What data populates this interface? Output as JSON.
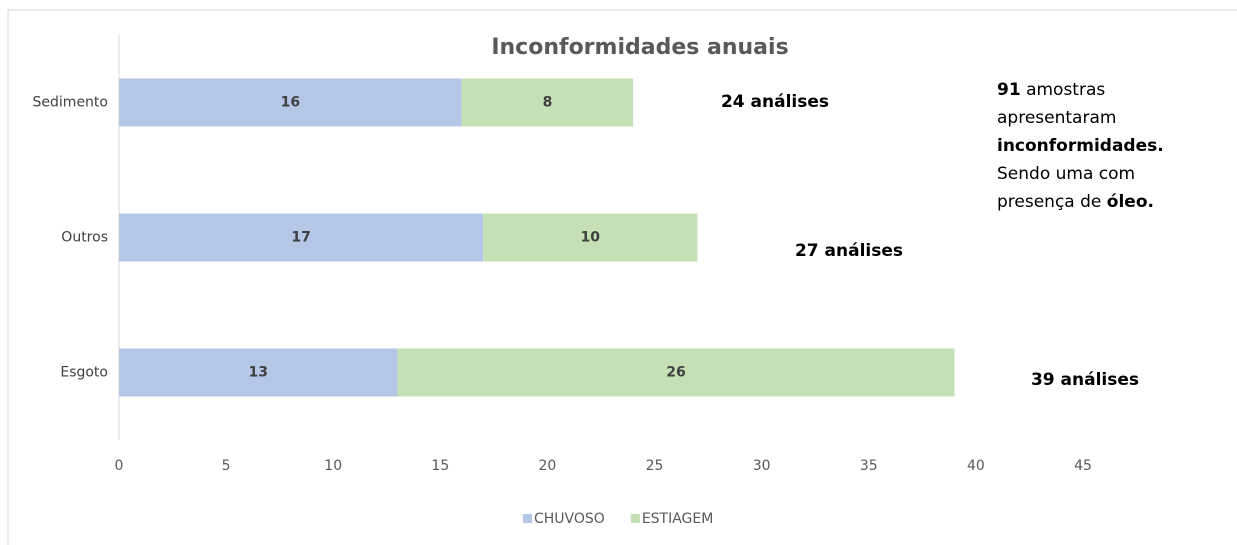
{
  "chart_data": {
    "type": "stacked-bar-horizontal",
    "title": "Inconformidades anuais",
    "categories": [
      "Sedimento",
      "Outros",
      "Esgoto"
    ],
    "series": [
      {
        "name": "CHUVOSO",
        "color": "#b4c7e7",
        "values": [
          16,
          17,
          13
        ]
      },
      {
        "name": "ESTIAGEM",
        "color": "#c5e0b4",
        "values": [
          8,
          10,
          26
        ]
      }
    ],
    "xlim": [
      0,
      45
    ],
    "xticks": [
      0,
      5,
      10,
      15,
      20,
      25,
      30,
      35,
      40,
      45
    ],
    "legend": "bottom",
    "annotations": [
      "24 análises",
      "27 análises",
      "39 análises"
    ],
    "note": [
      [
        {
          "text": "91",
          "bold": true
        },
        {
          "text": " amostras",
          "bold": false
        }
      ],
      [
        {
          "text": "apresentaram",
          "bold": false
        }
      ],
      [
        {
          "text": "inconformidades.",
          "bold": true
        }
      ],
      [
        {
          "text": "Sendo uma com",
          "bold": false
        }
      ],
      [
        {
          "text": "presença de ",
          "bold": false
        },
        {
          "text": "óleo.",
          "bold": true
        }
      ]
    ]
  }
}
